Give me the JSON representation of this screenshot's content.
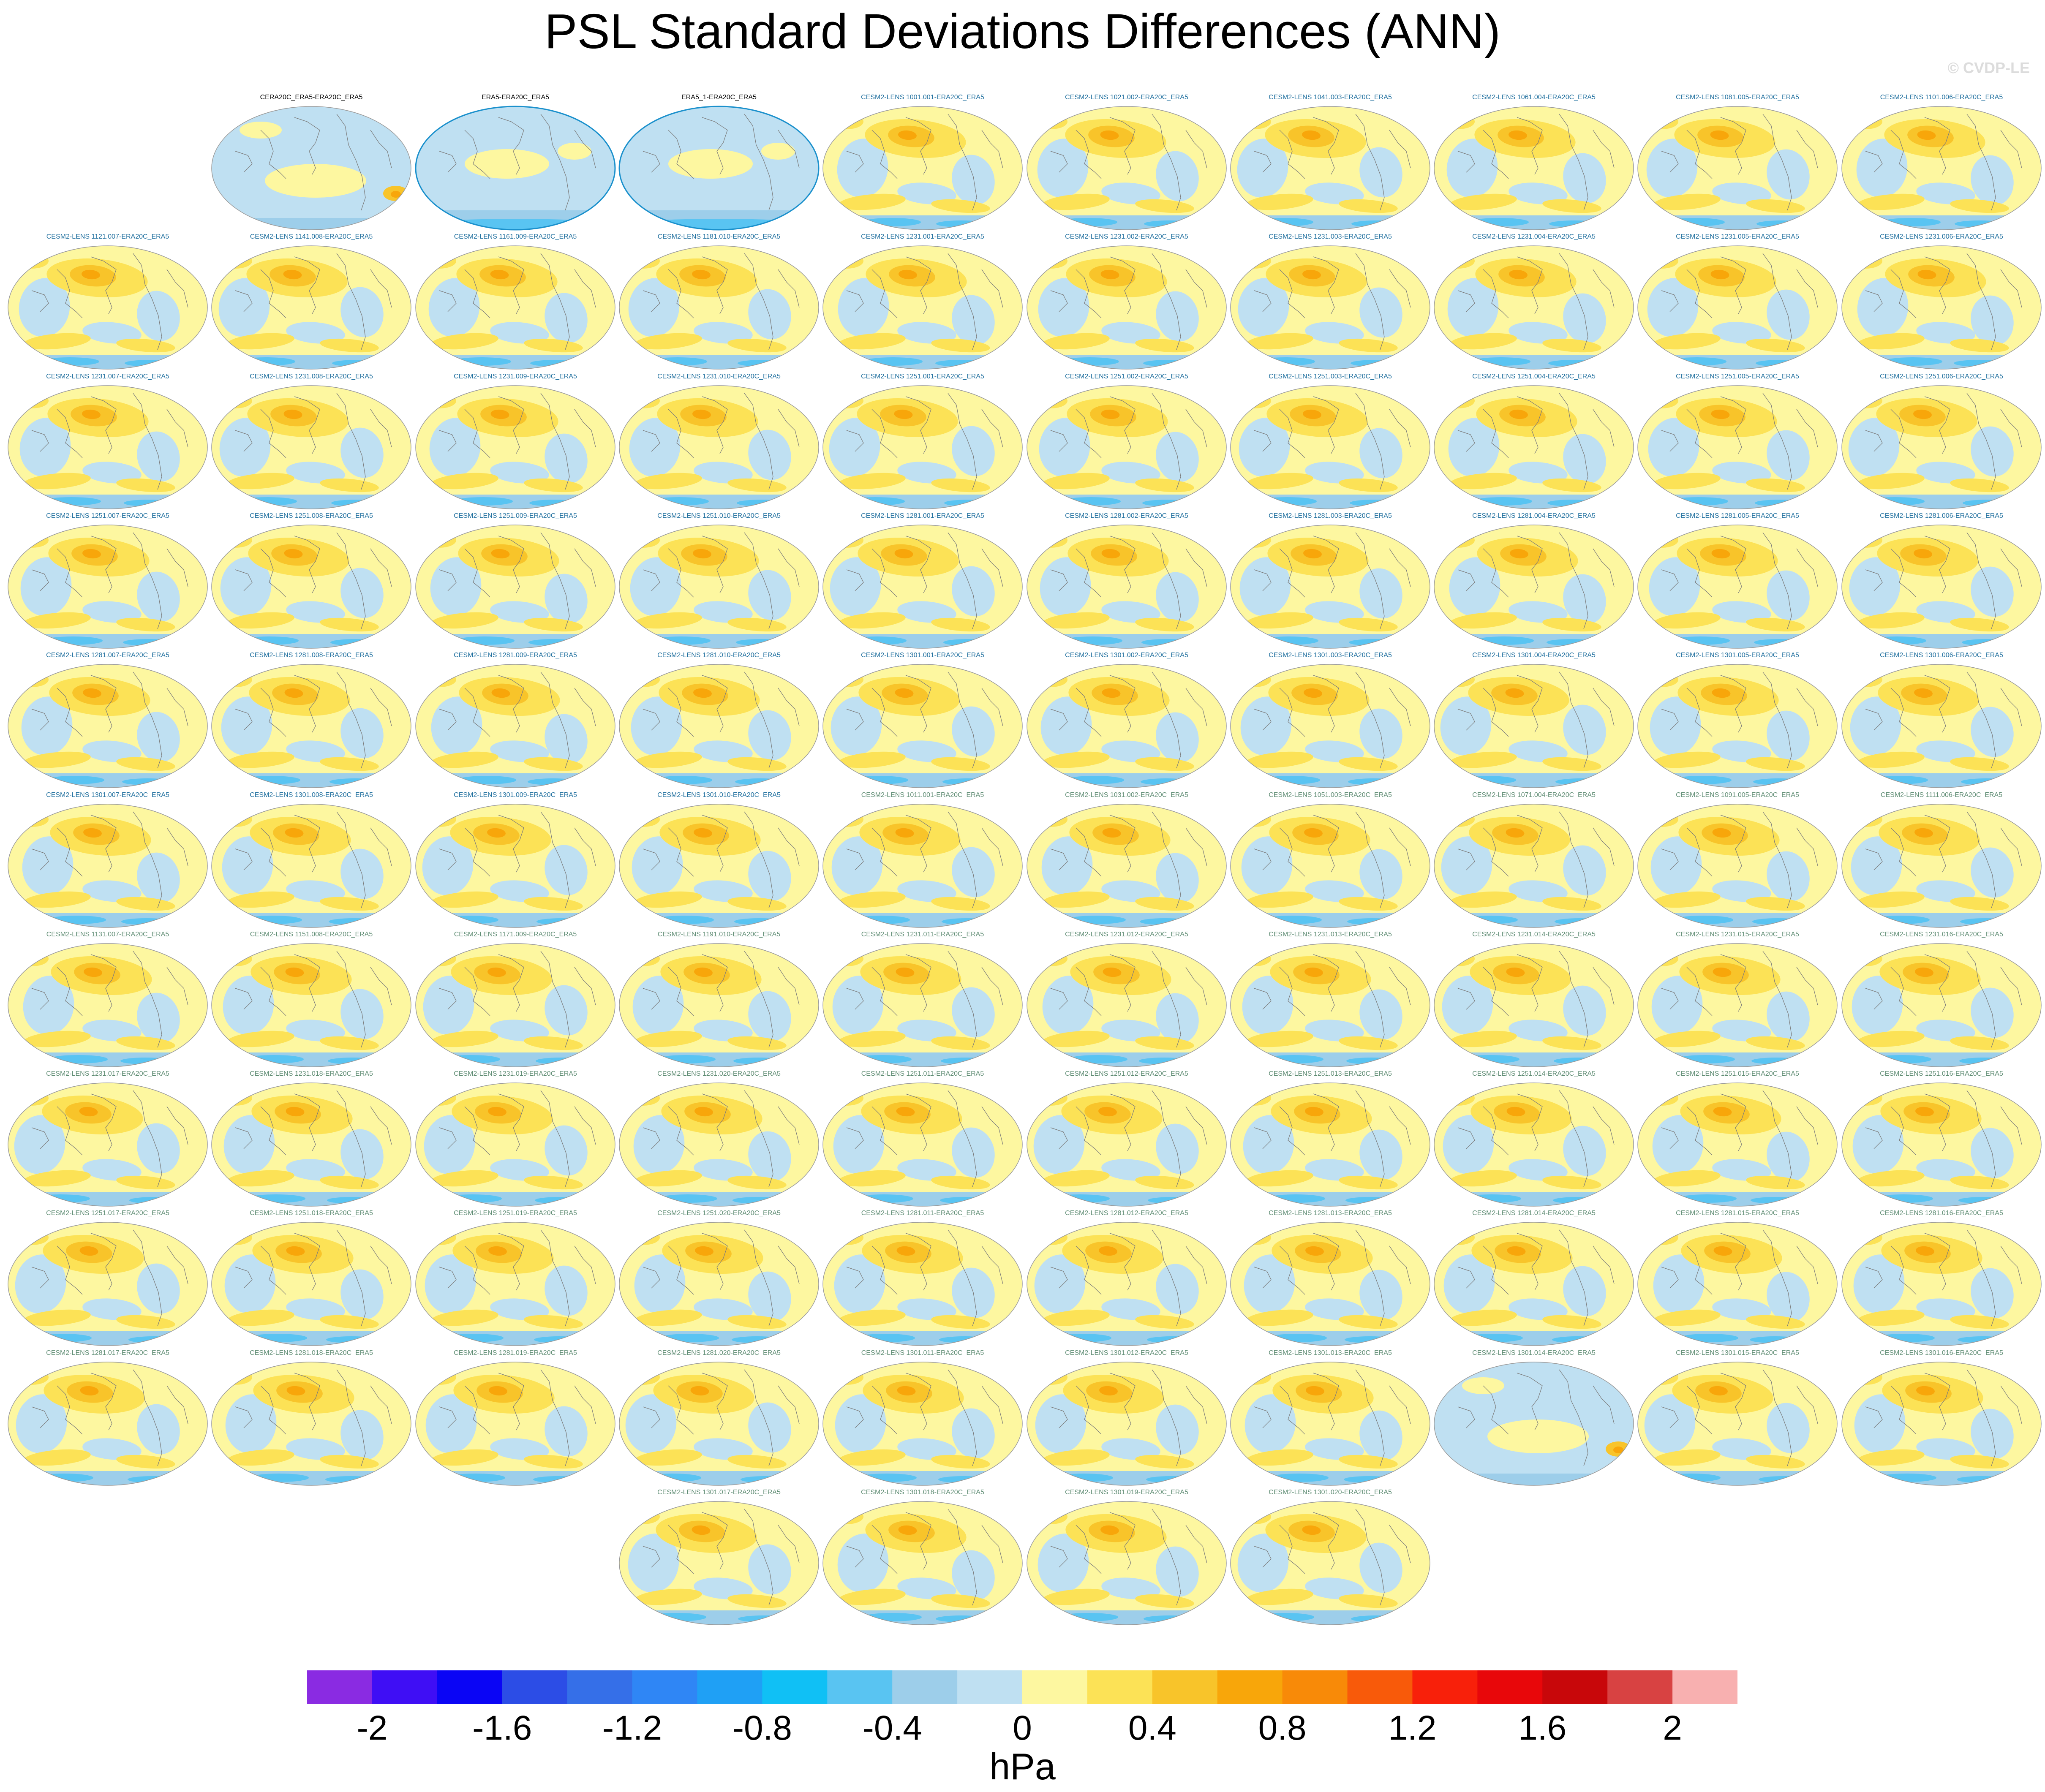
{
  "title": "PSL Standard Deviations Differences (ANN)",
  "watermark": "© CVDP-LE",
  "legend": {
    "units": "hPa",
    "colors": [
      "#8A2BE2",
      "#3F0EF5",
      "#0A05F5",
      "#2C4DE6",
      "#356FE8",
      "#2F86F5",
      "#1FA0F5",
      "#10C0F5",
      "#59C4F2",
      "#9DCEEA",
      "#BFE0F2",
      "#FDF7A0",
      "#FCE256",
      "#F8C42A",
      "#F8A60A",
      "#F88A08",
      "#F85A0A",
      "#F8200A",
      "#E8070A",
      "#C8070A",
      "#D84242",
      "#F8B0B0"
    ],
    "ticks": [
      "-2",
      "-1.6",
      "-1.2",
      "-0.8",
      "-0.4",
      "0",
      "0.4",
      "0.8",
      "1.2",
      "1.6",
      "2"
    ],
    "tick_values": [
      -2,
      -1.6,
      -1.2,
      -0.8,
      -0.4,
      0,
      0.4,
      0.8,
      1.2,
      1.6,
      2
    ],
    "range": [
      -2.2,
      2.2
    ]
  },
  "rows": [
    {
      "offset": 1,
      "panels": [
        {
          "label": "CERA20C_ERA5-ERA20C_ERA5",
          "style": 0,
          "variant": 1
        },
        {
          "label": "ERA5-ERA20C_ERA5",
          "style": 0,
          "variant": 2
        },
        {
          "label": "ERA5_1-ERA20C_ERA5",
          "style": 0,
          "variant": 2
        },
        {
          "label": "CESM2-LENS 1001.001-ERA20C_ERA5",
          "style": 1,
          "variant": 0
        },
        {
          "label": "CESM2-LENS 1021.002-ERA20C_ERA5",
          "style": 1,
          "variant": 0
        },
        {
          "label": "CESM2-LENS 1041.003-ERA20C_ERA5",
          "style": 1,
          "variant": 0
        },
        {
          "label": "CESM2-LENS 1061.004-ERA20C_ERA5",
          "style": 1,
          "variant": 0
        },
        {
          "label": "CESM2-LENS 1081.005-ERA20C_ERA5",
          "style": 1,
          "variant": 0
        },
        {
          "label": "CESM2-LENS 1101.006-ERA20C_ERA5",
          "style": 1,
          "variant": 0
        }
      ]
    },
    {
      "offset": 0,
      "panels": [
        {
          "label": "CESM2-LENS 1121.007-ERA20C_ERA5",
          "style": 1,
          "variant": 0
        },
        {
          "label": "CESM2-LENS 1141.008-ERA20C_ERA5",
          "style": 1,
          "variant": 0
        },
        {
          "label": "CESM2-LENS 1161.009-ERA20C_ERA5",
          "style": 1,
          "variant": 0
        },
        {
          "label": "CESM2-LENS 1181.010-ERA20C_ERA5",
          "style": 1,
          "variant": 0
        },
        {
          "label": "CESM2-LENS 1231.001-ERA20C_ERA5",
          "style": 1,
          "variant": 0
        },
        {
          "label": "CESM2-LENS 1231.002-ERA20C_ERA5",
          "style": 1,
          "variant": 0
        },
        {
          "label": "CESM2-LENS 1231.003-ERA20C_ERA5",
          "style": 1,
          "variant": 0
        },
        {
          "label": "CESM2-LENS 1231.004-ERA20C_ERA5",
          "style": 1,
          "variant": 0
        },
        {
          "label": "CESM2-LENS 1231.005-ERA20C_ERA5",
          "style": 1,
          "variant": 0
        },
        {
          "label": "CESM2-LENS 1231.006-ERA20C_ERA5",
          "style": 1,
          "variant": 0
        }
      ]
    },
    {
      "offset": 0,
      "panels": [
        {
          "label": "CESM2-LENS 1231.007-ERA20C_ERA5",
          "style": 1,
          "variant": 0
        },
        {
          "label": "CESM2-LENS 1231.008-ERA20C_ERA5",
          "style": 1,
          "variant": 0
        },
        {
          "label": "CESM2-LENS 1231.009-ERA20C_ERA5",
          "style": 1,
          "variant": 0
        },
        {
          "label": "CESM2-LENS 1231.010-ERA20C_ERA5",
          "style": 1,
          "variant": 0
        },
        {
          "label": "CESM2-LENS 1251.001-ERA20C_ERA5",
          "style": 1,
          "variant": 0
        },
        {
          "label": "CESM2-LENS 1251.002-ERA20C_ERA5",
          "style": 1,
          "variant": 0
        },
        {
          "label": "CESM2-LENS 1251.003-ERA20C_ERA5",
          "style": 1,
          "variant": 0
        },
        {
          "label": "CESM2-LENS 1251.004-ERA20C_ERA5",
          "style": 1,
          "variant": 0
        },
        {
          "label": "CESM2-LENS 1251.005-ERA20C_ERA5",
          "style": 1,
          "variant": 0
        },
        {
          "label": "CESM2-LENS 1251.006-ERA20C_ERA5",
          "style": 1,
          "variant": 0
        }
      ]
    },
    {
      "offset": 0,
      "panels": [
        {
          "label": "CESM2-LENS 1251.007-ERA20C_ERA5",
          "style": 1,
          "variant": 0
        },
        {
          "label": "CESM2-LENS 1251.008-ERA20C_ERA5",
          "style": 1,
          "variant": 0
        },
        {
          "label": "CESM2-LENS 1251.009-ERA20C_ERA5",
          "style": 1,
          "variant": 0
        },
        {
          "label": "CESM2-LENS 1251.010-ERA20C_ERA5",
          "style": 1,
          "variant": 0
        },
        {
          "label": "CESM2-LENS 1281.001-ERA20C_ERA5",
          "style": 1,
          "variant": 0
        },
        {
          "label": "CESM2-LENS 1281.002-ERA20C_ERA5",
          "style": 1,
          "variant": 0
        },
        {
          "label": "CESM2-LENS 1281.003-ERA20C_ERA5",
          "style": 1,
          "variant": 0
        },
        {
          "label": "CESM2-LENS 1281.004-ERA20C_ERA5",
          "style": 1,
          "variant": 0
        },
        {
          "label": "CESM2-LENS 1281.005-ERA20C_ERA5",
          "style": 1,
          "variant": 0
        },
        {
          "label": "CESM2-LENS 1281.006-ERA20C_ERA5",
          "style": 1,
          "variant": 0
        }
      ]
    },
    {
      "offset": 0,
      "panels": [
        {
          "label": "CESM2-LENS 1281.007-ERA20C_ERA5",
          "style": 1,
          "variant": 0
        },
        {
          "label": "CESM2-LENS 1281.008-ERA20C_ERA5",
          "style": 1,
          "variant": 0
        },
        {
          "label": "CESM2-LENS 1281.009-ERA20C_ERA5",
          "style": 1,
          "variant": 0
        },
        {
          "label": "CESM2-LENS 1281.010-ERA20C_ERA5",
          "style": 1,
          "variant": 0
        },
        {
          "label": "CESM2-LENS 1301.001-ERA20C_ERA5",
          "style": 1,
          "variant": 0
        },
        {
          "label": "CESM2-LENS 1301.002-ERA20C_ERA5",
          "style": 1,
          "variant": 0
        },
        {
          "label": "CESM2-LENS 1301.003-ERA20C_ERA5",
          "style": 1,
          "variant": 0
        },
        {
          "label": "CESM2-LENS 1301.004-ERA20C_ERA5",
          "style": 1,
          "variant": 0
        },
        {
          "label": "CESM2-LENS 1301.005-ERA20C_ERA5",
          "style": 1,
          "variant": 0
        },
        {
          "label": "CESM2-LENS 1301.006-ERA20C_ERA5",
          "style": 1,
          "variant": 0
        }
      ]
    },
    {
      "offset": 0,
      "panels": [
        {
          "label": "CESM2-LENS 1301.007-ERA20C_ERA5",
          "style": 1,
          "variant": 0
        },
        {
          "label": "CESM2-LENS 1301.008-ERA20C_ERA5",
          "style": 1,
          "variant": 0
        },
        {
          "label": "CESM2-LENS 1301.009-ERA20C_ERA5",
          "style": 1,
          "variant": 0
        },
        {
          "label": "CESM2-LENS 1301.010-ERA20C_ERA5",
          "style": 1,
          "variant": 0
        },
        {
          "label": "CESM2-LENS 1011.001-ERA20C_ERA5",
          "style": 2,
          "variant": 0
        },
        {
          "label": "CESM2-LENS 1031.002-ERA20C_ERA5",
          "style": 2,
          "variant": 0
        },
        {
          "label": "CESM2-LENS 1051.003-ERA20C_ERA5",
          "style": 2,
          "variant": 0
        },
        {
          "label": "CESM2-LENS 1071.004-ERA20C_ERA5",
          "style": 2,
          "variant": 0
        },
        {
          "label": "CESM2-LENS 1091.005-ERA20C_ERA5",
          "style": 2,
          "variant": 0
        },
        {
          "label": "CESM2-LENS 1111.006-ERA20C_ERA5",
          "style": 2,
          "variant": 0
        }
      ]
    },
    {
      "offset": 0,
      "panels": [
        {
          "label": "CESM2-LENS 1131.007-ERA20C_ERA5",
          "style": 2,
          "variant": 0
        },
        {
          "label": "CESM2-LENS 1151.008-ERA20C_ERA5",
          "style": 2,
          "variant": 0
        },
        {
          "label": "CESM2-LENS 1171.009-ERA20C_ERA5",
          "style": 2,
          "variant": 0
        },
        {
          "label": "CESM2-LENS 1191.010-ERA20C_ERA5",
          "style": 2,
          "variant": 0
        },
        {
          "label": "CESM2-LENS 1231.011-ERA20C_ERA5",
          "style": 2,
          "variant": 0
        },
        {
          "label": "CESM2-LENS 1231.012-ERA20C_ERA5",
          "style": 2,
          "variant": 0
        },
        {
          "label": "CESM2-LENS 1231.013-ERA20C_ERA5",
          "style": 2,
          "variant": 0
        },
        {
          "label": "CESM2-LENS 1231.014-ERA20C_ERA5",
          "style": 2,
          "variant": 0
        },
        {
          "label": "CESM2-LENS 1231.015-ERA20C_ERA5",
          "style": 2,
          "variant": 0
        },
        {
          "label": "CESM2-LENS 1231.016-ERA20C_ERA5",
          "style": 2,
          "variant": 0
        }
      ]
    },
    {
      "offset": 0,
      "panels": [
        {
          "label": "CESM2-LENS 1231.017-ERA20C_ERA5",
          "style": 2,
          "variant": 0
        },
        {
          "label": "CESM2-LENS 1231.018-ERA20C_ERA5",
          "style": 2,
          "variant": 0
        },
        {
          "label": "CESM2-LENS 1231.019-ERA20C_ERA5",
          "style": 2,
          "variant": 0
        },
        {
          "label": "CESM2-LENS 1231.020-ERA20C_ERA5",
          "style": 2,
          "variant": 0
        },
        {
          "label": "CESM2-LENS 1251.011-ERA20C_ERA5",
          "style": 2,
          "variant": 0
        },
        {
          "label": "CESM2-LENS 1251.012-ERA20C_ERA5",
          "style": 2,
          "variant": 0
        },
        {
          "label": "CESM2-LENS 1251.013-ERA20C_ERA5",
          "style": 2,
          "variant": 0
        },
        {
          "label": "CESM2-LENS 1251.014-ERA20C_ERA5",
          "style": 2,
          "variant": 0
        },
        {
          "label": "CESM2-LENS 1251.015-ERA20C_ERA5",
          "style": 2,
          "variant": 0
        },
        {
          "label": "CESM2-LENS 1251.016-ERA20C_ERA5",
          "style": 2,
          "variant": 0
        }
      ]
    },
    {
      "offset": 0,
      "panels": [
        {
          "label": "CESM2-LENS 1251.017-ERA20C_ERA5",
          "style": 2,
          "variant": 0
        },
        {
          "label": "CESM2-LENS 1251.018-ERA20C_ERA5",
          "style": 2,
          "variant": 0
        },
        {
          "label": "CESM2-LENS 1251.019-ERA20C_ERA5",
          "style": 2,
          "variant": 0
        },
        {
          "label": "CESM2-LENS 1251.020-ERA20C_ERA5",
          "style": 2,
          "variant": 0
        },
        {
          "label": "CESM2-LENS 1281.011-ERA20C_ERA5",
          "style": 2,
          "variant": 0
        },
        {
          "label": "CESM2-LENS 1281.012-ERA20C_ERA5",
          "style": 2,
          "variant": 0
        },
        {
          "label": "CESM2-LENS 1281.013-ERA20C_ERA5",
          "style": 2,
          "variant": 0
        },
        {
          "label": "CESM2-LENS 1281.014-ERA20C_ERA5",
          "style": 2,
          "variant": 0
        },
        {
          "label": "CESM2-LENS 1281.015-ERA20C_ERA5",
          "style": 2,
          "variant": 0
        },
        {
          "label": "CESM2-LENS 1281.016-ERA20C_ERA5",
          "style": 2,
          "variant": 0
        }
      ]
    },
    {
      "offset": 0,
      "panels": [
        {
          "label": "CESM2-LENS 1281.017-ERA20C_ERA5",
          "style": 2,
          "variant": 0
        },
        {
          "label": "CESM2-LENS 1281.018-ERA20C_ERA5",
          "style": 2,
          "variant": 0
        },
        {
          "label": "CESM2-LENS 1281.019-ERA20C_ERA5",
          "style": 2,
          "variant": 0
        },
        {
          "label": "CESM2-LENS 1281.020-ERA20C_ERA5",
          "style": 2,
          "variant": 0
        },
        {
          "label": "CESM2-LENS 1301.011-ERA20C_ERA5",
          "style": 2,
          "variant": 0
        },
        {
          "label": "CESM2-LENS 1301.012-ERA20C_ERA5",
          "style": 2,
          "variant": 0
        },
        {
          "label": "CESM2-LENS 1301.013-ERA20C_ERA5",
          "style": 2,
          "variant": 0
        },
        {
          "label": "CESM2-LENS 1301.014-ERA20C_ERA5",
          "style": 2,
          "variant": 1
        },
        {
          "label": "CESM2-LENS 1301.015-ERA20C_ERA5",
          "style": 2,
          "variant": 0
        },
        {
          "label": "CESM2-LENS 1301.016-ERA20C_ERA5",
          "style": 2,
          "variant": 0
        }
      ]
    },
    {
      "offset": 3,
      "panels": [
        {
          "label": "CESM2-LENS 1301.017-ERA20C_ERA5",
          "style": 2,
          "variant": 0
        },
        {
          "label": "CESM2-LENS 1301.018-ERA20C_ERA5",
          "style": 2,
          "variant": 0
        },
        {
          "label": "CESM2-LENS 1301.019-ERA20C_ERA5",
          "style": 2,
          "variant": 0
        },
        {
          "label": "CESM2-LENS 1301.020-ERA20C_ERA5",
          "style": 2,
          "variant": 0
        }
      ]
    }
  ]
}
